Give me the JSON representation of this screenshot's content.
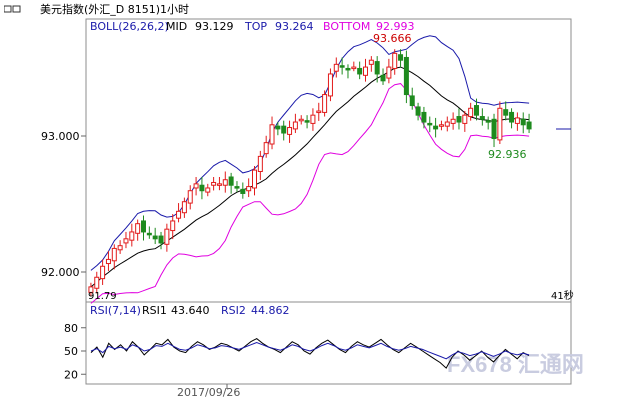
{
  "window": {
    "title": "美元指数(外汇_D 8151)1小时"
  },
  "indicator_main": {
    "name": "BOLL(26,26,2)",
    "mid_label": "MID",
    "mid_value": "93.129",
    "top_label": "TOP",
    "top_value": "93.264",
    "bottom_label": "BOTTOM",
    "bottom_value": "92.993"
  },
  "indicator_sub": {
    "name": "RSI(7,14)",
    "rsi1_label": "RSI1",
    "rsi1_value": "43.640",
    "rsi2_label": "RSI2",
    "rsi2_value": "44.862"
  },
  "annotations": {
    "high_label": "93.666",
    "low_label": "92.936",
    "left_bottom_label": "91.79",
    "right_bottom_label": "41秒",
    "date_label": "2017/09/26"
  },
  "watermark": {
    "text": "FX678 汇通网"
  },
  "colors": {
    "candle_up": "#e21b1b",
    "candle_down": "#1e8a1e",
    "boll_mid": "#000000",
    "boll_top": "#1a1aaa",
    "boll_bottom": "#e000e0",
    "rsi1": "#000000",
    "rsi2": "#1a1aaa",
    "high_label": "#cc0000",
    "low_label": "#1e8a1e"
  },
  "chart_data": [
    {
      "type": "candlestick",
      "title": "美元指数(外汇_D 8151)1小时",
      "y_ticks": [
        93.0,
        92.0
      ],
      "y_tick_labels": [
        "93.000",
        "92.000"
      ],
      "ylim": [
        91.79,
        93.85
      ],
      "grid": false,
      "candles_close": [
        91.9,
        91.97,
        92.05,
        92.1,
        92.18,
        92.2,
        92.25,
        92.3,
        92.36,
        92.3,
        92.28,
        92.25,
        92.22,
        92.32,
        92.38,
        92.45,
        92.52,
        92.6,
        92.65,
        92.6,
        92.62,
        92.66,
        92.65,
        92.68,
        92.64,
        92.62,
        92.58,
        92.63,
        92.75,
        92.85,
        92.95,
        93.08,
        93.05,
        93.02,
        93.06,
        93.1,
        93.12,
        93.1,
        93.15,
        93.18,
        93.3,
        93.45,
        93.52,
        93.5,
        93.48,
        93.5,
        93.45,
        93.5,
        93.55,
        93.45,
        93.4,
        93.5,
        93.6,
        93.55,
        93.3,
        93.22,
        93.15,
        93.1,
        93.08,
        93.05,
        93.08,
        93.1,
        93.12,
        93.1,
        93.15,
        93.2,
        93.15,
        93.12,
        93.1,
        92.98,
        93.2,
        93.15,
        93.1,
        93.13,
        93.08,
        93.05
      ],
      "series": [
        {
          "name": "MID",
          "last": 93.129
        },
        {
          "name": "TOP",
          "last": 93.264
        },
        {
          "name": "BOTTOM",
          "last": 92.993
        }
      ],
      "annotations": [
        {
          "text": "93.666",
          "value": 93.666
        },
        {
          "text": "92.936",
          "value": 92.936
        }
      ]
    },
    {
      "type": "line",
      "title": "RSI(7,14)",
      "y_ticks": [
        80,
        50,
        20
      ],
      "ylim": [
        10,
        90
      ],
      "series": [
        {
          "name": "RSI1",
          "last": 43.64,
          "values": [
            48,
            55,
            42,
            60,
            52,
            58,
            50,
            62,
            55,
            45,
            52,
            60,
            58,
            65,
            55,
            50,
            48,
            56,
            62,
            58,
            52,
            55,
            60,
            58,
            54,
            50,
            56,
            62,
            66,
            60,
            55,
            52,
            48,
            55,
            62,
            58,
            50,
            46,
            54,
            60,
            64,
            58,
            52,
            48,
            56,
            62,
            58,
            55,
            60,
            65,
            58,
            52,
            48,
            54,
            60,
            55,
            50,
            45,
            40,
            35,
            28,
            42,
            50,
            45,
            38,
            44,
            50,
            42,
            36,
            44,
            52,
            46,
            40,
            48,
            44
          ]
        },
        {
          "name": "RSI2",
          "last": 44.862,
          "values": [
            50,
            53,
            48,
            56,
            53,
            55,
            52,
            58,
            55,
            50,
            52,
            57,
            56,
            60,
            56,
            52,
            51,
            54,
            58,
            56,
            53,
            54,
            57,
            56,
            54,
            52,
            55,
            58,
            61,
            58,
            55,
            53,
            51,
            54,
            58,
            56,
            52,
            50,
            53,
            57,
            60,
            57,
            53,
            51,
            54,
            58,
            56,
            54,
            57,
            60,
            56,
            53,
            51,
            53,
            56,
            54,
            52,
            49,
            46,
            43,
            40,
            45,
            49,
            47,
            44,
            46,
            49,
            46,
            43,
            46,
            50,
            47,
            45,
            47,
            45
          ]
        }
      ]
    }
  ]
}
